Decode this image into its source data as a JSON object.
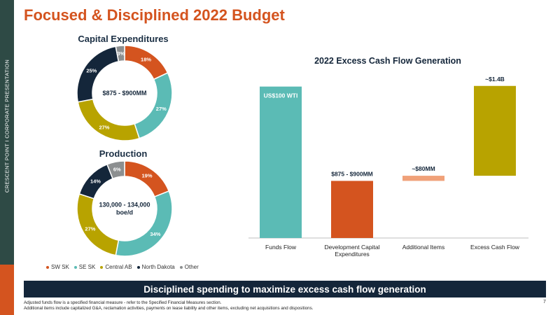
{
  "sidebar": {
    "text": "CRESCENT POINT  I  CORPORATE PRESENTATION"
  },
  "page": {
    "title": "Focused & Disciplined 2022 Budget",
    "number": "7"
  },
  "colors": {
    "SW SK": "#d4541f",
    "SE SK": "#5bbbb5",
    "Central AB": "#b8a300",
    "North Dakota": "#14263a",
    "Other": "#8c8f90",
    "Additional Items": "#f0a179"
  },
  "legend": [
    "SW SK",
    "SE SK",
    "Central AB",
    "North Dakota",
    "Other"
  ],
  "chart_data": [
    {
      "type": "pie",
      "title": "Capital Expenditures",
      "center_label": "$875 - $900MM",
      "categories": [
        "SW SK",
        "SE SK",
        "Central AB",
        "North Dakota",
        "Other"
      ],
      "values": [
        18,
        27,
        27,
        25,
        3
      ],
      "labels": [
        "18%",
        "27%",
        "27%",
        "25%",
        "3%"
      ]
    },
    {
      "type": "pie",
      "title": "Production",
      "center_label": [
        "130,000 - 134,000",
        "boe/d"
      ],
      "categories": [
        "SW SK",
        "SE SK",
        "Central AB",
        "North Dakota",
        "Other"
      ],
      "values": [
        19,
        34,
        27,
        14,
        6
      ],
      "labels": [
        "19%",
        "34%",
        "27%",
        "14%",
        "6%"
      ]
    },
    {
      "type": "bar",
      "title": "2022 Excess Cash Flow Generation",
      "categories": [
        [
          "Funds Flow"
        ],
        [
          "Development Capital",
          "Expenditures"
        ],
        [
          "Additional Items"
        ],
        [
          "Excess Cash Flow"
        ]
      ],
      "values": [
        2.36,
        0.89,
        0.08,
        1.4
      ],
      "data_labels": [
        "US$100 WTI",
        "$875 - $900MM",
        "~$80MM",
        "~$1.4B"
      ],
      "colors": [
        "#5bbbb5",
        "#d4541f",
        "#f0a179",
        "#b8a300"
      ],
      "ylim": [
        0,
        2.4
      ]
    }
  ],
  "banner": "Disciplined spending to maximize excess cash flow generation",
  "footnotes": [
    "Adjusted funds flow is a specified financial measure - refer to the Specified Financial Measures section.",
    "Additional items include capitalized G&A, reclamation activities, payments on lease liability and other items, excluding net acquisitions and dispositions."
  ]
}
